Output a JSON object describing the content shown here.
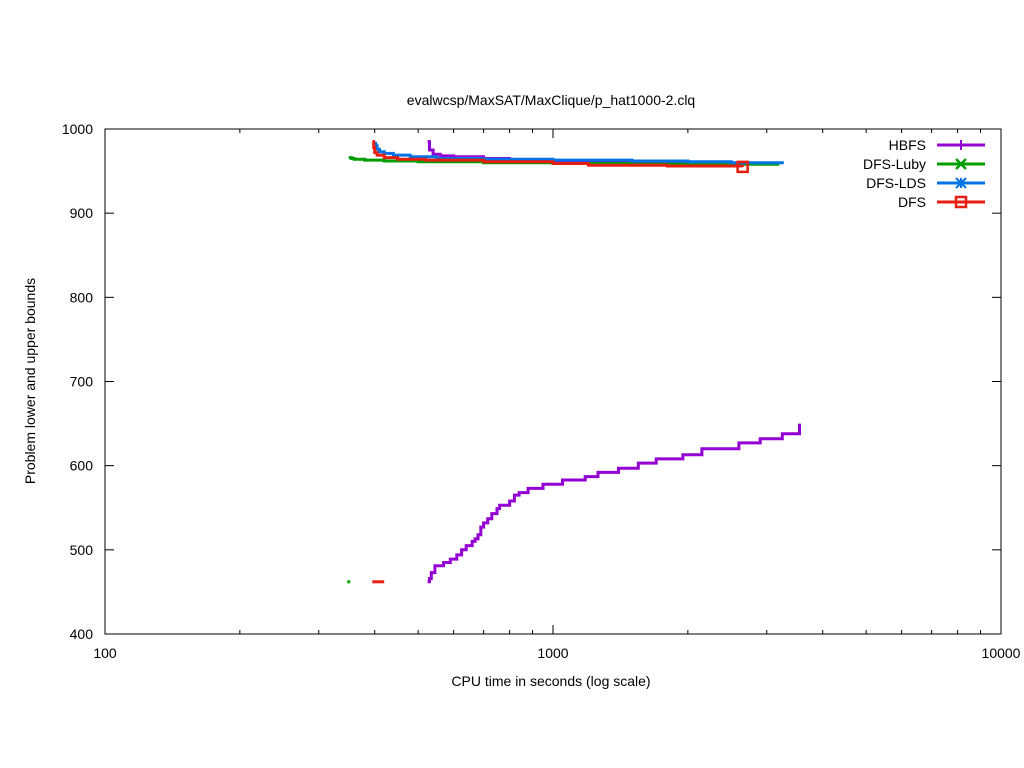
{
  "chart_data": {
    "type": "line",
    "title": "evalwcsp/MaxSAT/MaxClique/p_hat1000-2.clq",
    "xlabel": "CPU time in seconds (log scale)",
    "ylabel": "Problem lower and upper bounds",
    "xscale": "log",
    "xlim": [
      100,
      10000
    ],
    "ylim": [
      400,
      1000
    ],
    "xticks": [
      100,
      1000,
      10000
    ],
    "xtick_labels": [
      "100",
      "1000",
      "10000"
    ],
    "yticks": [
      400,
      500,
      600,
      700,
      800,
      900,
      1000
    ],
    "ytick_labels": [
      "400",
      "500",
      "600",
      "700",
      "800",
      "900",
      "1000"
    ],
    "grid": false,
    "legend_position": "top-right",
    "series": [
      {
        "name": "HBFS",
        "color": "#9400d3",
        "marker": "plus",
        "upper": {
          "x": [
            525,
            530,
            540,
            560,
            600,
            700,
            800,
            1000,
            1500,
            2000,
            2500
          ],
          "y": [
            985,
            975,
            970,
            968,
            967,
            965,
            963,
            962,
            961,
            960,
            960
          ]
        },
        "lower": {
          "x": [
            525,
            530,
            535,
            545,
            570,
            590,
            610,
            625,
            640,
            660,
            670,
            680,
            690,
            700,
            715,
            730,
            750,
            760,
            800,
            820,
            840,
            880,
            950,
            1050,
            1180,
            1260,
            1400,
            1550,
            1700,
            1950,
            2150,
            2600,
            2900,
            3250,
            3550
          ],
          "y": [
            462,
            466,
            473,
            481,
            485,
            489,
            494,
            500,
            505,
            510,
            513,
            518,
            527,
            532,
            537,
            543,
            549,
            553,
            558,
            565,
            568,
            573,
            578,
            583,
            587,
            592,
            597,
            603,
            608,
            613,
            620,
            627,
            632,
            638,
            650
          ]
        }
      },
      {
        "name": "DFS-Luby",
        "color": "#009e00",
        "marker": "x",
        "upper": {
          "x": [
            350,
            355,
            360,
            380,
            420,
            500,
            700,
            1000,
            1500,
            2000,
            3200
          ],
          "y": [
            966,
            965,
            964,
            963,
            962,
            961,
            960,
            959,
            958,
            958,
            958
          ]
        },
        "lower": {
          "x": [
            350
          ],
          "y": [
            462
          ]
        }
      },
      {
        "name": "DFS-LDS",
        "color": "#0072e6",
        "marker": "star",
        "upper": {
          "x": [
            400,
            402,
            405,
            410,
            420,
            440,
            480,
            550,
            700,
            1000,
            1500,
            2000,
            2500,
            3250
          ],
          "y": [
            983,
            980,
            976,
            973,
            971,
            969,
            967,
            965,
            964,
            963,
            962,
            961,
            960,
            958
          ]
        },
        "lower": {
          "x": [],
          "y": []
        }
      },
      {
        "name": "DFS",
        "color": "#e51e10",
        "marker": "square",
        "upper": {
          "x": [
            395,
            398,
            400,
            405,
            420,
            450,
            520,
            700,
            1000,
            1200,
            1800,
            2650
          ],
          "y": [
            985,
            978,
            972,
            969,
            966,
            964,
            963,
            961,
            959,
            957,
            956,
            955
          ]
        },
        "lower": {
          "x": [
            395,
            420
          ],
          "y": [
            462,
            462
          ]
        }
      }
    ]
  }
}
